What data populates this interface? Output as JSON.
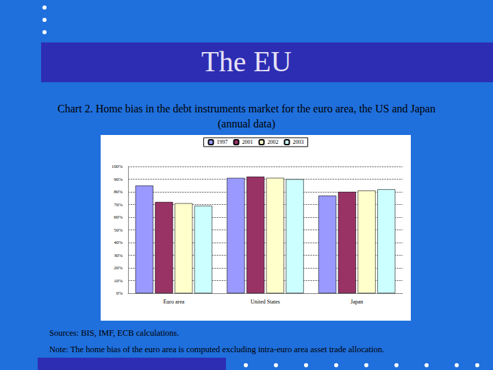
{
  "slide": {
    "title": "The EU",
    "sources": "Sources: BIS, IMF, ECB calculations.",
    "note": "Note: The home bias of the euro area is computed excluding intra-euro area asset trade allocation."
  },
  "chart_data": {
    "type": "bar",
    "title": "Chart 2. Home bias in the debt instruments market for the euro area, the US and Japan (annual data)",
    "categories": [
      "Euro area",
      "United States",
      "Japan"
    ],
    "series": [
      {
        "name": "1997",
        "color": "#9999ff",
        "values": [
          85,
          91,
          77
        ]
      },
      {
        "name": "2001",
        "color": "#993366",
        "values": [
          72,
          92,
          80
        ]
      },
      {
        "name": "2002",
        "color": "#ffffcc",
        "values": [
          71,
          91,
          81
        ]
      },
      {
        "name": "2003",
        "color": "#ccffff",
        "values": [
          69,
          90,
          82
        ]
      }
    ],
    "ylim": [
      0,
      100
    ],
    "yticks": [
      {
        "value": 0,
        "label": "0%"
      },
      {
        "value": 10,
        "label": "10%"
      },
      {
        "value": 20,
        "label": "20%"
      },
      {
        "value": 30,
        "label": "30%"
      },
      {
        "value": 40,
        "label": "40%"
      },
      {
        "value": 50,
        "label": "50%"
      },
      {
        "value": 60,
        "label": "60%"
      },
      {
        "value": 70,
        "label": "70%"
      },
      {
        "value": 80,
        "label": "80%"
      },
      {
        "value": 90,
        "label": "90%"
      },
      {
        "value": 100,
        "label": "100%"
      }
    ],
    "grid": true,
    "legend": "top"
  }
}
